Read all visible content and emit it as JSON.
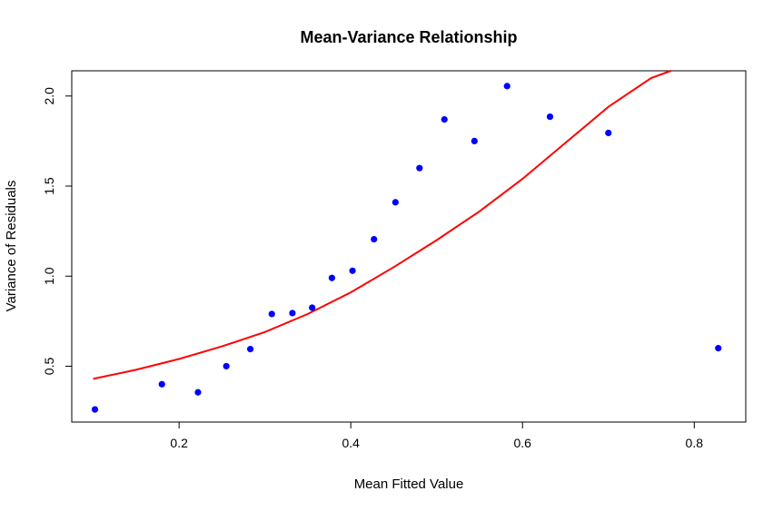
{
  "chart_data": {
    "type": "scatter",
    "title": "Mean-Variance Relationship",
    "xlabel": "Mean Fitted Value",
    "ylabel": "Variance of Residuals",
    "xlim": [
      0.075,
      0.86
    ],
    "ylim": [
      0.19,
      2.14
    ],
    "x_ticks": [
      0.2,
      0.4,
      0.6,
      0.8
    ],
    "x_tick_labels": [
      "0.2",
      "0.4",
      "0.6",
      "0.8"
    ],
    "y_ticks": [
      0.5,
      1.0,
      1.5,
      2.0
    ],
    "y_tick_labels": [
      "0.5",
      "1.0",
      "1.5",
      "2.0"
    ],
    "grid": false,
    "colors": {
      "points": "#0000ff",
      "curve": "#ff0000",
      "axes": "#000000"
    },
    "points": {
      "x": [
        0.102,
        0.18,
        0.222,
        0.255,
        0.283,
        0.308,
        0.332,
        0.355,
        0.378,
        0.402,
        0.427,
        0.452,
        0.48,
        0.509,
        0.544,
        0.582,
        0.632,
        0.7,
        0.828
      ],
      "y": [
        0.26,
        0.4,
        0.355,
        0.5,
        0.595,
        0.79,
        0.795,
        0.825,
        0.99,
        1.03,
        1.205,
        1.41,
        1.6,
        1.87,
        1.75,
        2.055,
        1.885,
        1.795,
        0.6
      ]
    },
    "curve": {
      "x": [
        0.1,
        0.15,
        0.2,
        0.25,
        0.3,
        0.35,
        0.4,
        0.45,
        0.5,
        0.55,
        0.6,
        0.65,
        0.7,
        0.75,
        0.773
      ],
      "y": [
        0.43,
        0.48,
        0.54,
        0.61,
        0.69,
        0.79,
        0.91,
        1.05,
        1.2,
        1.36,
        1.54,
        1.74,
        1.94,
        2.1,
        2.14
      ]
    }
  }
}
